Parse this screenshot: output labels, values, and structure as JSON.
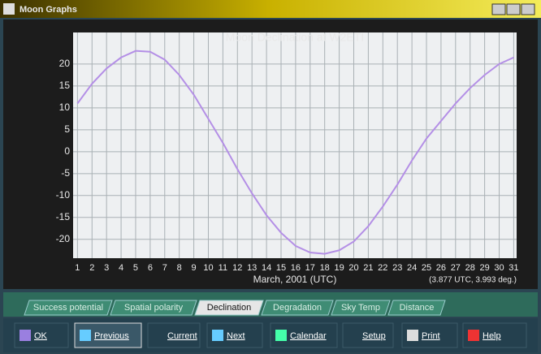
{
  "window": {
    "title": "Moon Graphs"
  },
  "chart_data": {
    "type": "line",
    "title": "Moon Declination at W2ETI",
    "x_label": "March, 2001 (UTC)",
    "annotation": "(3.877 UTC, 3.993 deg.)",
    "x": [
      1,
      2,
      3,
      4,
      5,
      6,
      7,
      8,
      9,
      10,
      11,
      12,
      13,
      14,
      15,
      16,
      17,
      18,
      19,
      20,
      21,
      22,
      23,
      24,
      25,
      26,
      27,
      28,
      29,
      30,
      31
    ],
    "values": [
      11,
      15.5,
      19,
      21.5,
      23,
      22.8,
      21,
      17.5,
      13,
      7.5,
      2,
      -4,
      -9.5,
      -14.5,
      -18.5,
      -21.5,
      -23,
      -23.3,
      -22.5,
      -20.5,
      -17,
      -12.5,
      -7.5,
      -2,
      3,
      7,
      11,
      14.5,
      17.5,
      20,
      21.5
    ],
    "color": "#b48fe6",
    "xlim": [
      0.7,
      31.2
    ],
    "xticks": [
      1,
      2,
      3,
      4,
      5,
      6,
      7,
      8,
      9,
      10,
      11,
      12,
      13,
      14,
      15,
      16,
      17,
      18,
      19,
      20,
      21,
      22,
      23,
      24,
      25,
      26,
      27,
      28,
      29,
      30,
      31
    ],
    "ylim": [
      -24.3,
      27.2
    ],
    "yticks": [
      -20,
      -15,
      -10,
      -5,
      0,
      5,
      10,
      15,
      20
    ],
    "grid": true
  },
  "tabs": [
    "Success potential",
    "Spatial polarity",
    "Declination",
    "Degradation",
    "Sky Temp",
    "Distance"
  ],
  "buttons": [
    "OK",
    "Previous",
    "Current",
    "Next",
    "Calendar",
    "Setup",
    "Print",
    "Help"
  ]
}
